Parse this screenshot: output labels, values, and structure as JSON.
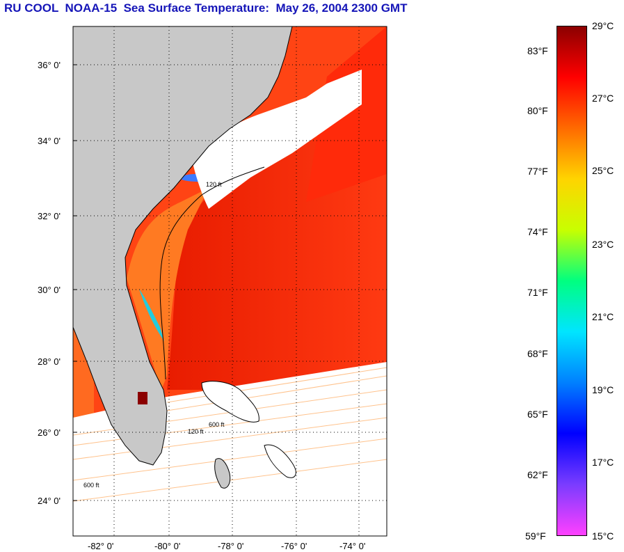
{
  "title": "RU COOL  NOAA-15  Sea Surface Temperature:  May 26, 2004 2300 GMT",
  "map": {
    "lat_labels": [
      "36° 0'",
      "34° 0'",
      "32° 0'",
      "30° 0'",
      "28° 0'",
      "26° 0'",
      "24° 0'"
    ],
    "lon_labels": [
      "-82° 0'",
      "-80° 0'",
      "-78° 0'",
      "-76° 0'",
      "-74° 0'"
    ],
    "contour_labels": [
      "120 ft",
      "600 ft",
      "120 ft",
      "600 ft"
    ],
    "colors": {
      "land": "#c8c8c8",
      "cloud": "#ffffff",
      "warm_water": "#ff3a10",
      "gulf_stream": "#ee2000",
      "shelf_water": "#ff7a20"
    }
  },
  "colorbar": {
    "fahrenheit": [
      "83°F",
      "80°F",
      "77°F",
      "74°F",
      "71°F",
      "68°F",
      "65°F",
      "62°F",
      "59°F"
    ],
    "celsius": [
      "29°C",
      "27°C",
      "25°C",
      "23°C",
      "21°C",
      "19°C",
      "17°C",
      "15°C"
    ],
    "colors": [
      "#8b0000",
      "#ff0000",
      "#ff6a00",
      "#ffd400",
      "#c8ff00",
      "#00ff80",
      "#00e5ff",
      "#0080ff",
      "#0000ff",
      "#7a3cff",
      "#ff40ff"
    ]
  }
}
